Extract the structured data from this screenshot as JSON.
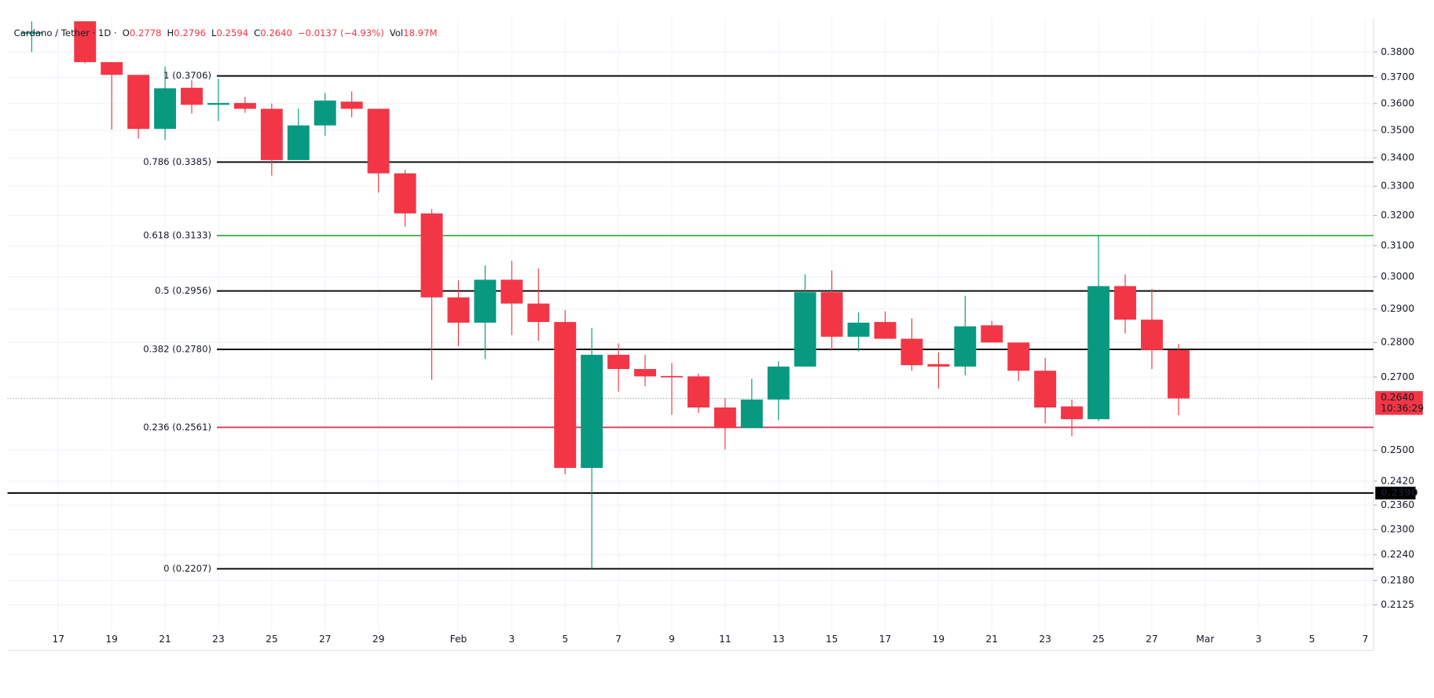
{
  "chart_data": {
    "type": "candlestick",
    "header": {
      "title": "Cardano / Tether · 1D ·",
      "items": [
        {
          "key": "O",
          "value": "0.2778"
        },
        {
          "key": "H",
          "value": "0.2796"
        },
        {
          "key": "L",
          "value": "0.2594"
        },
        {
          "key": "C",
          "value": "0.2640"
        },
        {
          "key": "",
          "value": "−0.0137 (−4.93%)"
        },
        {
          "key": "Vol",
          "value": "18.97M"
        }
      ],
      "value_color": "#f23645"
    },
    "categories": [
      null,
      "17",
      null,
      "19",
      null,
      "21",
      null,
      "23",
      null,
      "25",
      null,
      "27",
      null,
      "29",
      null,
      null,
      "Feb",
      null,
      "3",
      null,
      "5",
      null,
      "7",
      null,
      "9",
      null,
      "11",
      null,
      "13",
      null,
      "15",
      null,
      "17",
      null,
      "19",
      null,
      "21",
      null,
      "23",
      null,
      "25",
      null,
      "27",
      null,
      "Mar",
      null,
      "3",
      null,
      "5",
      null,
      "7"
    ],
    "open": [
      0.3875,
      null,
      0.3925,
      0.376,
      0.371,
      0.3505,
      0.366,
      0.3595,
      0.3602,
      0.358,
      0.3392,
      0.3518,
      0.3607,
      0.358,
      0.3345,
      0.3207,
      0.2936,
      0.2859,
      0.2991,
      0.2917,
      0.2861,
      0.2454,
      0.2764,
      0.2723,
      0.2703,
      0.2702,
      0.2615,
      0.2559,
      0.2637,
      0.273,
      0.2952,
      0.2817,
      0.2861,
      0.2811,
      0.2737,
      0.273,
      0.2851,
      0.28,
      0.2718,
      0.2618,
      0.2583,
      0.2971,
      0.2868,
      0.2778,
      null,
      null,
      null,
      null,
      null,
      null,
      null
    ],
    "high": [
      0.3925,
      null,
      0.3925,
      0.376,
      0.371,
      0.3743,
      0.3689,
      0.3695,
      0.3625,
      0.36,
      0.358,
      0.364,
      0.3646,
      0.358,
      0.3357,
      0.3222,
      0.2989,
      0.3036,
      0.3051,
      0.3027,
      0.2897,
      0.2843,
      0.2797,
      0.2764,
      0.274,
      0.271,
      0.264,
      0.2695,
      0.2745,
      0.3008,
      0.302,
      0.289,
      0.2893,
      0.2872,
      0.2771,
      0.2941,
      0.2864,
      0.28,
      0.2755,
      0.2637,
      0.3133,
      0.3008,
      0.2962,
      0.2796,
      null,
      null,
      null,
      null,
      null,
      null,
      null
    ],
    "low": [
      0.38,
      null,
      0.3755,
      0.3503,
      0.347,
      0.3465,
      0.3562,
      0.3534,
      0.3565,
      0.3337,
      0.3392,
      0.348,
      0.3548,
      0.3278,
      0.3163,
      0.2692,
      0.2789,
      0.2752,
      0.2822,
      0.2805,
      0.2438,
      0.2207,
      0.2659,
      0.2674,
      0.2595,
      0.26,
      0.2502,
      0.2559,
      0.258,
      0.273,
      0.2776,
      0.2774,
      0.2811,
      0.2718,
      0.2668,
      0.2705,
      0.28,
      0.2689,
      0.2572,
      0.2537,
      0.2578,
      0.2827,
      0.2723,
      0.2594,
      null,
      null,
      null,
      null,
      null,
      null,
      null
    ],
    "close": [
      0.388,
      null,
      0.376,
      0.371,
      0.3505,
      0.3658,
      0.3595,
      0.3602,
      0.358,
      0.3392,
      0.3518,
      0.3611,
      0.358,
      0.3345,
      0.3207,
      0.2936,
      0.2859,
      0.2991,
      0.2917,
      0.2861,
      0.2454,
      0.2764,
      0.2723,
      0.2702,
      0.27,
      0.2615,
      0.2559,
      0.2637,
      0.273,
      0.2952,
      0.2817,
      0.2859,
      0.2811,
      0.2734,
      0.273,
      0.2848,
      0.28,
      0.2718,
      0.2615,
      0.2583,
      0.2971,
      0.2868,
      0.2778,
      0.264,
      null,
      null,
      null,
      null,
      null,
      null,
      null
    ],
    "up_color": "#089981",
    "down_color": "#f23645",
    "log_scale": true,
    "ylim": [
      0.207,
      0.4
    ],
    "yticks": [
      {
        "value": 0.38,
        "label": "0.3800"
      },
      {
        "value": 0.37,
        "label": "0.3700"
      },
      {
        "value": 0.36,
        "label": "0.3600"
      },
      {
        "value": 0.35,
        "label": "0.3500"
      },
      {
        "value": 0.34,
        "label": "0.3400"
      },
      {
        "value": 0.33,
        "label": "0.3300"
      },
      {
        "value": 0.32,
        "label": "0.3200"
      },
      {
        "value": 0.31,
        "label": "0.3100"
      },
      {
        "value": 0.3,
        "label": "0.3000"
      },
      {
        "value": 0.29,
        "label": "0.2900"
      },
      {
        "value": 0.28,
        "label": "0.2800"
      },
      {
        "value": 0.27,
        "label": "0.2700"
      },
      {
        "value": 0.25,
        "label": "0.2500"
      },
      {
        "value": 0.242,
        "label": "0.2420"
      },
      {
        "value": 0.236,
        "label": "0.2360"
      },
      {
        "value": 0.23,
        "label": "0.2300"
      },
      {
        "value": 0.224,
        "label": "0.2240"
      },
      {
        "value": 0.218,
        "label": "0.2180"
      },
      {
        "value": 0.2125,
        "label": "0.2125"
      }
    ],
    "grid": true,
    "fib_levels": [
      {
        "label": "1 (0.3706)",
        "value": 0.3706,
        "color": "#000000"
      },
      {
        "label": "0.786 (0.3385)",
        "value": 0.3385,
        "color": "#000000"
      },
      {
        "label": "0.618 (0.3133)",
        "value": 0.3133,
        "color": "#4caf50"
      },
      {
        "label": "0.5 (0.2956)",
        "value": 0.2956,
        "color": "#000000"
      },
      {
        "label": "0.382 (0.2780)",
        "value": 0.278,
        "color": "#000000"
      },
      {
        "label": "0.236 (0.2561)",
        "value": 0.2561,
        "color": "#d0405a"
      },
      {
        "label": "0 (0.2207)",
        "value": 0.2207,
        "color": "#000000"
      }
    ],
    "horizontal_line": {
      "value": 0.239,
      "label": "0.2390",
      "color": "#000000"
    },
    "last_price": {
      "value": 0.264,
      "label": "0.2640",
      "countdown": "10:36:29",
      "color": "#f23645"
    }
  }
}
